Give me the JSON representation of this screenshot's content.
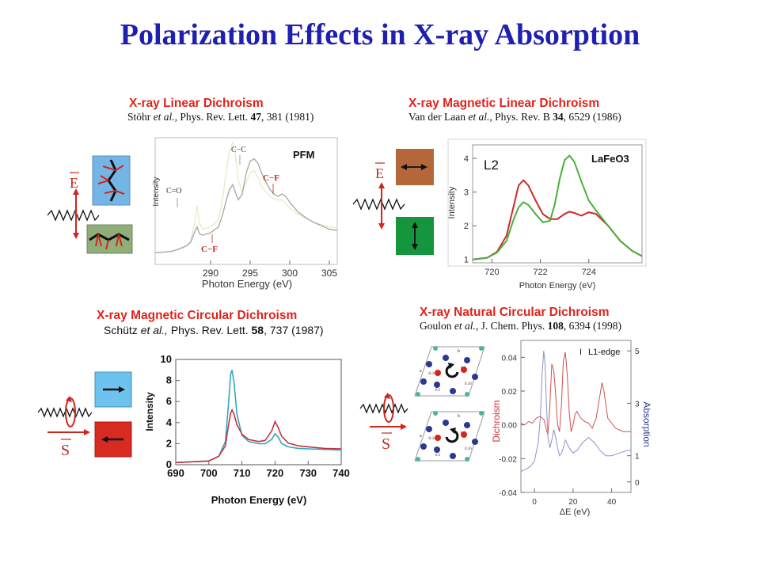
{
  "slide": {
    "title": "Polarization Effects in X-ray Absorption"
  },
  "panels": {
    "xld": {
      "title": "X-ray Linear Dichroism",
      "ref_authors": "Stöhr",
      "ref_etal": " et al.,",
      "ref_journal": " Phys. Rev. Lett. ",
      "ref_volume": "47",
      "ref_pages": ", 381 (1981)",
      "vector_label": "E",
      "colors": {
        "light": "#e9ecc9",
        "dark": "#aaaaaa",
        "label": "#c0271e"
      }
    },
    "xmld": {
      "title": "X-ray Magnetic Linear Dichroism",
      "ref_authors": "Van der Laan",
      "ref_etal": " et al.,",
      "ref_journal": " Phys. Rev. B ",
      "ref_volume": "34",
      "ref_pages": ", 6529 (1986)",
      "vector_label": "E",
      "colors": {
        "red": "#cc2a2a",
        "green": "#4cae3c",
        "box_top": "#b3673a",
        "box_bottom": "#15963e"
      }
    },
    "xmcd": {
      "title": "X-ray Magnetic Circular Dichroism",
      "ref_authors": "Schütz",
      "ref_etal": " et al.,",
      "ref_journal": " Phys. Rev. Lett. ",
      "ref_volume": "58",
      "ref_pages": ", 737 (1987)",
      "vector_label": "S",
      "colors": {
        "red": "#c8323e",
        "cyan": "#35a7bf",
        "box_top": "#6dc3ee",
        "box_bottom": "#d72a20"
      }
    },
    "xncd": {
      "title": "X-ray Natural Circular Dichroism",
      "ref_authors": "Goulon",
      "ref_etal": " et al.,",
      "ref_journal": "  J. Chem. Phys. ",
      "ref_volume": "108",
      "ref_pages": ", 6394 (1998)",
      "vector_label": "S",
      "crystal_labels": [
        "b",
        "a",
        "-0.34",
        "0.0",
        "0.16",
        "0.5"
      ],
      "colors": {
        "red": "#d05050",
        "blue": "#8a92d0",
        "atom_blue": "#2a3a8f",
        "atom_red": "#d6261c",
        "atom_teal": "#4fb39a"
      }
    }
  },
  "chart_data": [
    {
      "type": "line",
      "title": "",
      "xlabel": "Photon Energy (eV)",
      "ylabel": "Intensity",
      "xlim": [
        283,
        306
      ],
      "ylim": [
        0,
        1.08
      ],
      "xticks": [
        290,
        295,
        300,
        305
      ],
      "yticks": [],
      "annotations": [
        "PFM",
        "C=O",
        "C−C",
        "C−F",
        "C−F"
      ],
      "series": [
        {
          "name": "",
          "color": "light",
          "x": [
            283,
            285,
            286,
            287,
            287.5,
            288,
            288.3,
            288.6,
            289,
            290,
            291,
            291.5,
            292,
            292.4,
            292.8,
            293.1,
            293.5,
            294,
            294.5,
            295,
            295.5,
            296,
            296.5,
            297,
            297.5,
            298,
            298.5,
            299,
            299.5,
            300,
            301,
            302,
            303,
            304,
            305,
            306
          ],
          "y": [
            0.1,
            0.11,
            0.13,
            0.16,
            0.2,
            0.36,
            0.5,
            0.35,
            0.3,
            0.32,
            0.38,
            0.55,
            0.8,
            0.97,
            1.04,
            0.95,
            0.72,
            0.62,
            0.7,
            0.78,
            0.8,
            0.74,
            0.66,
            0.62,
            0.58,
            0.56,
            0.55,
            0.55,
            0.52,
            0.48,
            0.43,
            0.39,
            0.36,
            0.34,
            0.32,
            0.31
          ]
        },
        {
          "name": "",
          "color": "dark",
          "x": [
            283,
            285,
            286,
            287,
            287.5,
            288,
            288.3,
            288.6,
            289,
            290,
            291,
            291.5,
            292,
            292.4,
            292.8,
            293.1,
            293.5,
            294,
            294.5,
            295,
            295.5,
            296,
            296.5,
            297,
            297.5,
            298,
            298.5,
            299,
            299.5,
            300,
            301,
            302,
            303,
            304,
            305,
            306
          ],
          "y": [
            0.1,
            0.11,
            0.13,
            0.16,
            0.19,
            0.28,
            0.32,
            0.26,
            0.25,
            0.27,
            0.32,
            0.42,
            0.55,
            0.64,
            0.68,
            0.62,
            0.55,
            0.6,
            0.78,
            0.88,
            0.9,
            0.86,
            0.77,
            0.7,
            0.64,
            0.6,
            0.58,
            0.6,
            0.58,
            0.53,
            0.45,
            0.4,
            0.36,
            0.33,
            0.3,
            0.29
          ]
        }
      ]
    },
    {
      "type": "line",
      "title": "LaFeO3",
      "annotation": "L2",
      "xlabel": "Photon Energy (eV)",
      "ylabel": "Intensity",
      "xlim": [
        719.2,
        726.2
      ],
      "ylim": [
        0.9,
        4.4
      ],
      "xticks": [
        720,
        722,
        724
      ],
      "yticks": [
        1,
        2,
        3,
        4
      ],
      "series": [
        {
          "name": "",
          "color": "red",
          "x": [
            719.2,
            719.8,
            720.2,
            720.6,
            720.9,
            721.1,
            721.3,
            721.5,
            721.8,
            722.1,
            722.4,
            722.7,
            723.0,
            723.2,
            723.4,
            723.7,
            724.0,
            724.3,
            724.8,
            725.3,
            725.8,
            726.2
          ],
          "y": [
            1.0,
            1.05,
            1.22,
            1.7,
            2.6,
            3.2,
            3.35,
            3.2,
            2.75,
            2.35,
            2.2,
            2.2,
            2.35,
            2.42,
            2.38,
            2.3,
            2.4,
            2.35,
            2.0,
            1.55,
            1.25,
            1.1
          ]
        },
        {
          "name": "",
          "color": "green",
          "x": [
            719.2,
            719.8,
            720.2,
            720.6,
            720.9,
            721.1,
            721.3,
            721.5,
            721.8,
            722.1,
            722.4,
            722.6,
            722.8,
            723.0,
            723.2,
            723.4,
            723.7,
            724.0,
            724.3,
            724.8,
            725.3,
            725.8,
            726.2
          ],
          "y": [
            1.0,
            1.05,
            1.2,
            1.55,
            2.2,
            2.55,
            2.7,
            2.62,
            2.35,
            2.1,
            2.15,
            2.65,
            3.4,
            3.95,
            4.08,
            3.9,
            3.3,
            2.75,
            2.45,
            2.0,
            1.55,
            1.25,
            1.1
          ]
        }
      ]
    },
    {
      "type": "line",
      "title": "",
      "xlabel": "Photon Energy (eV)",
      "ylabel": "Intensity",
      "xlim": [
        690,
        740
      ],
      "ylim": [
        0,
        10
      ],
      "xticks": [
        690,
        700,
        710,
        720,
        730,
        740
      ],
      "yticks": [
        0,
        2,
        4,
        6,
        8,
        10
      ],
      "series": [
        {
          "name": "",
          "color": "cyan",
          "x": [
            690,
            700,
            703,
            705,
            706,
            706.6,
            707,
            707.6,
            708.5,
            710,
            712,
            715,
            717,
            719,
            720,
            721,
            722,
            724,
            727,
            730,
            735,
            740
          ],
          "y": [
            0.2,
            0.35,
            0.8,
            2.2,
            6.0,
            8.6,
            9.0,
            7.8,
            4.8,
            2.8,
            2.2,
            2.0,
            2.0,
            2.4,
            2.95,
            2.6,
            2.0,
            1.7,
            1.55,
            1.5,
            1.45,
            1.4
          ]
        },
        {
          "name": "",
          "color": "red",
          "x": [
            690,
            700,
            703,
            705,
            706,
            706.6,
            707,
            707.6,
            708.5,
            710,
            712,
            715,
            717,
            719,
            720,
            721,
            722,
            724,
            727,
            730,
            735,
            740
          ],
          "y": [
            0.2,
            0.35,
            0.8,
            1.8,
            3.9,
            4.9,
            5.2,
            4.8,
            3.8,
            2.9,
            2.4,
            2.2,
            2.3,
            3.2,
            4.1,
            3.5,
            2.7,
            2.05,
            1.8,
            1.7,
            1.55,
            1.5
          ]
        }
      ]
    },
    {
      "type": "line",
      "title": "",
      "annotation": "L1-edge",
      "xlabel": "ΔE (eV)",
      "ylabel": "Dichroism",
      "y2label": "Absorption",
      "xlim": [
        -7,
        50
      ],
      "ylim": [
        -0.04,
        0.05
      ],
      "y2lim": [
        -0.4,
        5.4
      ],
      "xticks": [
        0,
        20,
        40
      ],
      "yticks": [
        -0.04,
        -0.02,
        0,
        0.02,
        0.04
      ],
      "y2ticks": [
        0,
        1,
        3,
        5
      ],
      "series": [
        {
          "name": "",
          "axis": "left",
          "color": "red",
          "x": [
            -7,
            -5,
            -3,
            -1,
            1,
            3,
            5,
            6,
            7,
            8,
            9,
            10,
            11,
            12,
            13,
            14,
            15,
            16,
            17,
            18,
            19,
            20,
            21,
            22,
            24,
            26,
            28,
            30,
            32,
            34,
            35,
            36,
            37,
            38,
            40,
            42,
            44,
            46,
            48,
            50
          ],
          "y": [
            0.001,
            0.0,
            0.002,
            0.001,
            0.004,
            0.005,
            0.003,
            -0.002,
            -0.006,
            0.012,
            0.036,
            0.032,
            0.018,
            0.0,
            -0.004,
            0.012,
            0.038,
            0.043,
            0.03,
            0.008,
            -0.004,
            0.0,
            0.006,
            0.008,
            0.004,
            0.002,
            0.001,
            -0.002,
            0.004,
            0.018,
            0.025,
            0.02,
            0.012,
            0.004,
            0.001,
            -0.002,
            -0.003,
            -0.004,
            -0.004,
            -0.004
          ]
        },
        {
          "name": "",
          "axis": "right",
          "color": "blue",
          "x": [
            -7,
            -4,
            -2,
            0,
            2,
            3,
            4,
            4.8,
            5.5,
            6.2,
            7,
            8,
            9,
            10,
            11,
            12,
            13,
            14,
            15,
            16,
            18,
            20,
            22,
            25,
            28,
            31,
            34,
            37,
            40,
            44,
            48,
            50
          ],
          "y": [
            0.4,
            0.5,
            0.6,
            0.8,
            1.5,
            2.4,
            4.1,
            5.0,
            4.5,
            3.0,
            1.7,
            1.3,
            1.6,
            2.0,
            1.7,
            1.3,
            1.0,
            1.1,
            1.3,
            1.6,
            1.3,
            1.1,
            1.2,
            1.5,
            1.7,
            1.5,
            1.2,
            1.0,
            1.0,
            1.1,
            1.2,
            1.2
          ]
        }
      ]
    }
  ]
}
